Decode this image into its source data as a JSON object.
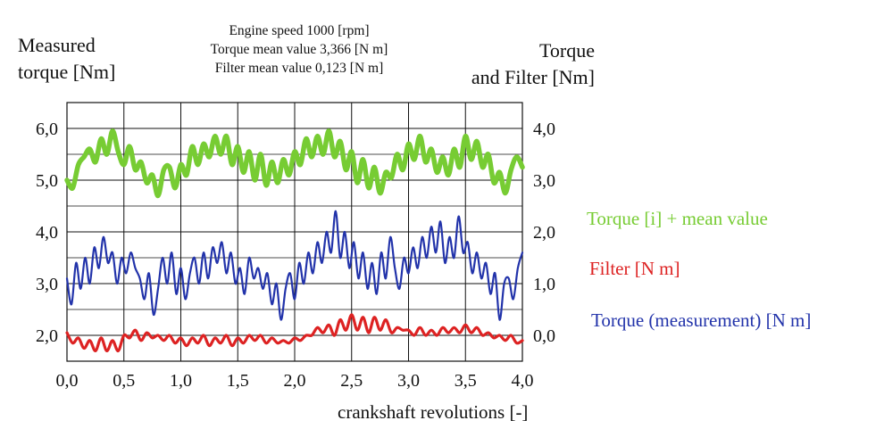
{
  "header": {
    "left_line1": "Measured",
    "left_line2": "torque [Nm]",
    "right_line1": "Torque",
    "right_line2": "and Filter [Nm]",
    "info_line1": "Engine speed 1000 [rpm]",
    "info_line2": "Torque mean value 3,366 [N m]",
    "info_line3": "Filter mean value 0,123 [N m]"
  },
  "legend": {
    "torque_i": "Torque [i] + mean value",
    "filter": "Filter [N m]",
    "torque_meas": "Torque (measurement) [N m]"
  },
  "colors": {
    "torque_i": "#77cc33",
    "filter": "#dd2222",
    "torque_meas": "#2233aa",
    "grid": "#111111"
  },
  "chart_data": {
    "type": "line",
    "xlabel": "crankshaft revolutions [-]",
    "xlim": [
      0,
      4
    ],
    "ylim_left": [
      1.5,
      6.5
    ],
    "ylim_right": [
      -0.5,
      4.5
    ],
    "grid": true,
    "x_ticks": [
      "0,0",
      "0,5",
      "1,0",
      "1,5",
      "2,0",
      "2,5",
      "3,0",
      "3,5",
      "4,0"
    ],
    "y_ticks_left": [
      "6,0",
      "5,0",
      "4,0",
      "3,0",
      "2,0"
    ],
    "y_ticks_right": [
      "4,0",
      "3,0",
      "2,0",
      "1,0",
      "0,0"
    ],
    "series": [
      {
        "name": "Torque [i] + mean value",
        "x": [
          0.0,
          0.05,
          0.1,
          0.15,
          0.2,
          0.25,
          0.3,
          0.35,
          0.4,
          0.45,
          0.5,
          0.55,
          0.6,
          0.65,
          0.7,
          0.75,
          0.8,
          0.85,
          0.9,
          0.95,
          1.0,
          1.05,
          1.1,
          1.15,
          1.2,
          1.25,
          1.3,
          1.35,
          1.4,
          1.45,
          1.5,
          1.55,
          1.6,
          1.65,
          1.7,
          1.75,
          1.8,
          1.85,
          1.9,
          1.95,
          2.0,
          2.05,
          2.1,
          2.15,
          2.2,
          2.25,
          2.3,
          2.35,
          2.4,
          2.45,
          2.5,
          2.55,
          2.6,
          2.65,
          2.7,
          2.75,
          2.8,
          2.85,
          2.9,
          2.95,
          3.0,
          3.05,
          3.1,
          3.15,
          3.2,
          3.25,
          3.3,
          3.35,
          3.4,
          3.45,
          3.5,
          3.55,
          3.6,
          3.65,
          3.7,
          3.75,
          3.8,
          3.85,
          3.9,
          3.95,
          4.0
        ],
        "y": [
          5.0,
          4.85,
          5.3,
          5.45,
          5.6,
          5.35,
          5.8,
          5.5,
          5.95,
          5.55,
          5.3,
          5.65,
          5.2,
          5.35,
          4.95,
          5.1,
          4.7,
          5.2,
          5.25,
          4.85,
          5.3,
          5.1,
          5.65,
          5.3,
          5.7,
          5.45,
          5.85,
          5.5,
          5.85,
          5.3,
          5.65,
          5.15,
          5.55,
          5.0,
          5.5,
          4.9,
          5.35,
          4.95,
          5.4,
          5.1,
          5.55,
          5.3,
          5.8,
          5.45,
          5.85,
          5.5,
          5.95,
          5.45,
          5.75,
          5.2,
          5.55,
          4.95,
          5.4,
          4.85,
          5.25,
          4.75,
          5.15,
          5.05,
          5.5,
          5.2,
          5.7,
          5.4,
          5.85,
          5.35,
          5.6,
          5.15,
          5.45,
          5.1,
          5.6,
          5.25,
          5.85,
          5.4,
          5.75,
          5.25,
          5.5,
          4.95,
          5.15,
          4.75,
          5.2,
          5.45,
          5.25
        ]
      },
      {
        "name": "Torque (measurement) [N m]",
        "x": [
          0.0,
          0.04,
          0.08,
          0.12,
          0.16,
          0.2,
          0.24,
          0.28,
          0.32,
          0.36,
          0.4,
          0.44,
          0.48,
          0.52,
          0.56,
          0.6,
          0.64,
          0.68,
          0.72,
          0.76,
          0.8,
          0.84,
          0.88,
          0.92,
          0.96,
          1.0,
          1.04,
          1.08,
          1.12,
          1.16,
          1.2,
          1.24,
          1.28,
          1.32,
          1.36,
          1.4,
          1.44,
          1.48,
          1.52,
          1.56,
          1.6,
          1.64,
          1.68,
          1.72,
          1.76,
          1.8,
          1.84,
          1.88,
          1.92,
          1.96,
          2.0,
          2.04,
          2.08,
          2.12,
          2.16,
          2.2,
          2.24,
          2.28,
          2.32,
          2.36,
          2.4,
          2.44,
          2.48,
          2.52,
          2.56,
          2.6,
          2.64,
          2.68,
          2.72,
          2.76,
          2.8,
          2.84,
          2.88,
          2.92,
          2.96,
          3.0,
          3.04,
          3.08,
          3.12,
          3.16,
          3.2,
          3.24,
          3.28,
          3.32,
          3.36,
          3.4,
          3.44,
          3.48,
          3.52,
          3.56,
          3.6,
          3.64,
          3.68,
          3.72,
          3.76,
          3.8,
          3.84,
          3.88,
          3.92,
          3.96,
          4.0
        ],
        "y": [
          3.1,
          2.6,
          3.4,
          2.9,
          3.5,
          3.0,
          3.7,
          3.3,
          3.9,
          3.4,
          3.6,
          3.0,
          3.5,
          3.2,
          3.6,
          3.3,
          3.1,
          2.7,
          3.2,
          2.4,
          2.9,
          3.5,
          3.0,
          3.6,
          2.8,
          3.3,
          2.7,
          3.2,
          3.5,
          3.0,
          3.6,
          3.1,
          3.7,
          3.4,
          3.8,
          3.2,
          3.6,
          3.0,
          3.3,
          2.8,
          3.5,
          3.1,
          3.3,
          2.9,
          3.2,
          2.6,
          3.0,
          2.3,
          2.9,
          3.2,
          2.7,
          3.4,
          3.0,
          3.6,
          3.2,
          3.8,
          3.4,
          4.0,
          3.6,
          4.4,
          3.5,
          4.0,
          3.3,
          3.8,
          3.1,
          3.6,
          2.9,
          3.4,
          2.8,
          3.6,
          3.1,
          3.9,
          3.3,
          2.9,
          3.5,
          3.2,
          3.7,
          3.3,
          3.9,
          3.5,
          4.1,
          3.6,
          4.2,
          3.4,
          3.9,
          3.5,
          4.3,
          3.6,
          3.8,
          3.2,
          3.6,
          3.1,
          3.4,
          2.8,
          3.2,
          2.3,
          3.0,
          3.1,
          2.7,
          3.3,
          3.6
        ]
      },
      {
        "name": "Filter [N m]",
        "x": [
          0.0,
          0.05,
          0.1,
          0.15,
          0.2,
          0.25,
          0.3,
          0.35,
          0.4,
          0.45,
          0.5,
          0.55,
          0.6,
          0.65,
          0.7,
          0.75,
          0.8,
          0.85,
          0.9,
          0.95,
          1.0,
          1.05,
          1.1,
          1.15,
          1.2,
          1.25,
          1.3,
          1.35,
          1.4,
          1.45,
          1.5,
          1.55,
          1.6,
          1.65,
          1.7,
          1.75,
          1.8,
          1.85,
          1.9,
          1.95,
          2.0,
          2.05,
          2.1,
          2.15,
          2.2,
          2.25,
          2.3,
          2.35,
          2.4,
          2.45,
          2.5,
          2.55,
          2.6,
          2.65,
          2.7,
          2.75,
          2.8,
          2.85,
          2.9,
          2.95,
          3.0,
          3.05,
          3.1,
          3.15,
          3.2,
          3.25,
          3.3,
          3.35,
          3.4,
          3.45,
          3.5,
          3.55,
          3.6,
          3.65,
          3.7,
          3.75,
          3.8,
          3.85,
          3.9,
          3.95,
          4.0
        ],
        "y": [
          2.05,
          1.85,
          1.95,
          1.75,
          1.9,
          1.7,
          1.95,
          1.7,
          1.9,
          1.7,
          2.0,
          1.95,
          2.1,
          1.9,
          2.05,
          1.95,
          2.0,
          1.9,
          2.0,
          1.85,
          1.95,
          1.8,
          1.95,
          1.85,
          2.0,
          1.8,
          1.95,
          1.85,
          2.0,
          1.8,
          1.95,
          1.85,
          2.0,
          1.9,
          2.0,
          1.85,
          1.95,
          1.85,
          1.9,
          1.85,
          1.95,
          1.9,
          2.0,
          2.0,
          2.15,
          2.05,
          2.2,
          2.0,
          2.3,
          2.1,
          2.4,
          2.1,
          2.35,
          2.05,
          2.35,
          2.1,
          2.3,
          2.05,
          2.15,
          2.1,
          2.1,
          2.0,
          2.15,
          2.0,
          2.1,
          2.0,
          2.15,
          2.05,
          2.15,
          2.05,
          2.2,
          2.05,
          2.15,
          2.0,
          2.05,
          1.95,
          2.0,
          1.9,
          2.0,
          1.85,
          1.9
        ]
      }
    ]
  }
}
